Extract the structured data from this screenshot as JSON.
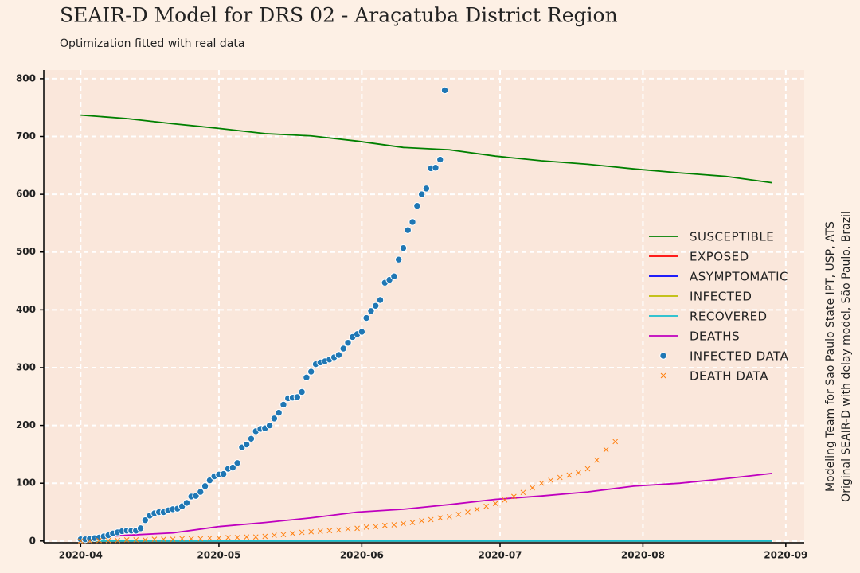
{
  "chart_data": {
    "type": "line",
    "title": "SEAIR-D Model for DRS 02 - Araçatuba District Region",
    "subtitle": "Optimization fitted with real data",
    "side_note": [
      "Modeling Team for Sao Paulo State IPT, USP, ATS",
      "Original SEAIR-D with delay model, São Paulo, Brazil"
    ],
    "xlim": [
      -8,
      157
    ],
    "ylim": [
      -3,
      815
    ],
    "xticks": [
      {
        "value": 0,
        "label": "2020-04"
      },
      {
        "value": 30,
        "label": "2020-05"
      },
      {
        "value": 61,
        "label": "2020-06"
      },
      {
        "value": 91,
        "label": "2020-07"
      },
      {
        "value": 122,
        "label": "2020-08"
      },
      {
        "value": 153,
        "label": "2020-09"
      }
    ],
    "yticks": [
      0,
      100,
      200,
      300,
      400,
      500,
      600,
      700,
      800
    ],
    "grid": true,
    "legend": "right",
    "series": [
      {
        "name": "SUSCEPTIBLE",
        "kind": "line",
        "color": "#008000",
        "x": [
          0,
          10,
          20,
          30,
          40,
          50,
          60,
          70,
          80,
          90,
          100,
          110,
          120,
          130,
          140,
          150
        ],
        "values": [
          737,
          731,
          722,
          714,
          705,
          701,
          692,
          681,
          677,
          666,
          658,
          652,
          644,
          637,
          631,
          620
        ]
      },
      {
        "name": "EXPOSED",
        "kind": "line",
        "color": "#ff0000",
        "x": [
          0,
          50,
          100,
          150
        ],
        "values": [
          0,
          0,
          0,
          0
        ]
      },
      {
        "name": "ASYMPTOMATIC",
        "kind": "line",
        "color": "#0000ff",
        "x": [
          0,
          50,
          100,
          150
        ],
        "values": [
          0,
          0,
          0,
          0
        ]
      },
      {
        "name": "INFECTED",
        "kind": "line",
        "color": "#bcbd00",
        "x": [
          0,
          50,
          100,
          150
        ],
        "values": [
          0,
          0,
          0,
          0
        ]
      },
      {
        "name": "RECOVERED",
        "kind": "line",
        "color": "#17becf",
        "x": [
          0,
          50,
          100,
          150
        ],
        "values": [
          0,
          0,
          0,
          0
        ]
      },
      {
        "name": "DEATHS",
        "kind": "line",
        "color": "#bf00bf",
        "x": [
          0,
          10,
          20,
          30,
          40,
          50,
          60,
          70,
          80,
          90,
          100,
          110,
          120,
          130,
          140,
          150
        ],
        "values": [
          5,
          10,
          14,
          25,
          32,
          40,
          50,
          55,
          63,
          72,
          78,
          85,
          95,
          100,
          108,
          117
        ]
      },
      {
        "name": "INFECTED DATA",
        "kind": "dot",
        "color": "#1f77b4",
        "x": [
          0,
          1,
          2,
          3,
          4,
          5,
          6,
          7,
          8,
          9,
          10,
          11,
          12,
          13,
          14,
          15,
          16,
          17,
          18,
          19,
          20,
          21,
          22,
          23,
          24,
          25,
          26,
          27,
          28,
          29,
          30,
          31,
          32,
          33,
          34,
          35,
          36,
          37,
          38,
          39,
          40,
          41,
          42,
          43,
          44,
          45,
          46,
          47,
          48,
          49,
          50,
          51,
          52,
          53,
          54,
          55,
          56,
          57,
          58,
          59,
          60,
          61,
          62,
          63,
          64,
          65,
          66,
          67,
          68,
          69,
          70,
          71,
          72,
          73,
          74,
          75,
          76,
          77,
          78,
          79
        ],
        "values": [
          3,
          3,
          4,
          5,
          6,
          8,
          10,
          13,
          15,
          17,
          18,
          18,
          18,
          22,
          36,
          44,
          48,
          50,
          50,
          53,
          55,
          56,
          60,
          66,
          77,
          78,
          85,
          95,
          105,
          112,
          115,
          116,
          125,
          127,
          135,
          162,
          167,
          177,
          190,
          194,
          195,
          200,
          212,
          222,
          236,
          247,
          248,
          249,
          258,
          283,
          293,
          306,
          309,
          311,
          314,
          318,
          322,
          333,
          343,
          353,
          358,
          362,
          386,
          398,
          407,
          417,
          447,
          452,
          458,
          487,
          507,
          538,
          552,
          580,
          600,
          610,
          645,
          646,
          660,
          780
        ]
      },
      {
        "name": "DEATH DATA",
        "kind": "cross",
        "color": "#ff7f0e",
        "x": [
          0,
          2,
          4,
          6,
          8,
          10,
          12,
          14,
          16,
          18,
          20,
          22,
          24,
          26,
          28,
          30,
          32,
          34,
          36,
          38,
          40,
          42,
          44,
          46,
          48,
          50,
          52,
          54,
          56,
          58,
          60,
          62,
          64,
          66,
          68,
          70,
          72,
          74,
          76,
          78,
          80,
          82,
          84,
          86,
          88,
          90,
          92,
          94,
          96,
          98,
          100,
          102,
          104,
          106,
          108,
          110,
          112,
          114,
          116
        ],
        "values": [
          0,
          0,
          1,
          1,
          1,
          2,
          2,
          2,
          3,
          3,
          3,
          4,
          4,
          4,
          5,
          5,
          6,
          6,
          7,
          7,
          8,
          10,
          11,
          13,
          15,
          16,
          17,
          18,
          19,
          21,
          22,
          24,
          25,
          27,
          28,
          30,
          32,
          35,
          37,
          40,
          42,
          46,
          50,
          55,
          60,
          65,
          71,
          77,
          84,
          92,
          100,
          105,
          110,
          114,
          118,
          125,
          140,
          158,
          172
        ]
      }
    ]
  }
}
